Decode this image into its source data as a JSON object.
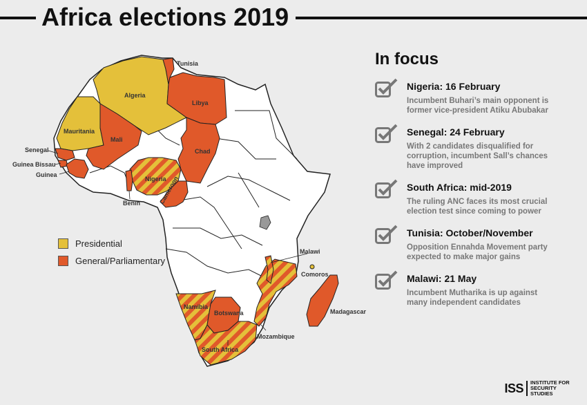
{
  "title": "Africa elections 2019",
  "colors": {
    "presidential": "#e4c03a",
    "general": "#e0592a",
    "land": "#ffffff",
    "border": "#222222",
    "background": "#ececec"
  },
  "legend": [
    {
      "label": "Presidential",
      "color": "#e4c03a"
    },
    {
      "label": "General/Parliamentary",
      "color": "#e0592a"
    }
  ],
  "map_labels": {
    "tunisia": "Tunisia",
    "algeria": "Algeria",
    "libya": "Libya",
    "mauritania": "Mauritania",
    "mali": "Mali",
    "chad": "Chad",
    "senegal": "Senegal",
    "guinea_bissau": "Guinea Bissau",
    "guinea": "Guinea",
    "nigeria": "Nigeria",
    "cameroon": "Cameroon",
    "benin": "Benin",
    "malawi": "Malawi",
    "comoros": "Comoros",
    "madagascar": "Madagascar",
    "namibia": "Namibia",
    "botswana": "Botswana",
    "mozambique": "Mozambique",
    "south_africa": "South Africa"
  },
  "focus": {
    "heading": "In focus",
    "items": [
      {
        "title": "Nigeria: 16 February",
        "desc": "Incumbent Buhari’s main opponent is former vice-president Atiku Abubakar"
      },
      {
        "title": "Senegal: 24 February",
        "desc": "With 2 candidates disqualified for corruption, incumbent Sall’s chances have improved"
      },
      {
        "title": "South Africa: mid-2019",
        "desc": "The ruling ANC faces its most crucial election test since coming to power"
      },
      {
        "title": "Tunisia: October/November",
        "desc": "Opposition Ennahda Movement party expected to make major gains"
      },
      {
        "title": "Malawi: 21 May",
        "desc": "Incumbent Mutharika is up against many independent candidates"
      }
    ]
  },
  "footer": {
    "logo": "ISS",
    "name": "INSTITUTE FOR SECURITY STUDIES"
  },
  "icons": {
    "focus": "checkbox-tick-icon"
  }
}
